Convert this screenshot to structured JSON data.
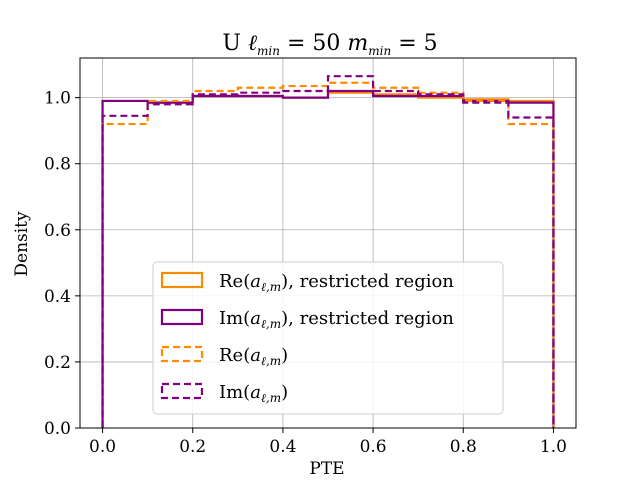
{
  "chart_data": {
    "type": "histogram-step",
    "title": {
      "prefix": "U ",
      "l_symbol": "ℓ",
      "l_sub": "min",
      "l_value": " = 50",
      "m_symbol": "m",
      "m_sub": "min",
      "m_value": " = 5"
    },
    "xlabel": "PTE",
    "ylabel": "Density",
    "xlim": [
      -0.05,
      1.05
    ],
    "ylim": [
      0.0,
      1.12
    ],
    "xticks": [
      "0.0",
      "0.2",
      "0.4",
      "0.6",
      "0.8",
      "1.0"
    ],
    "yticks": [
      "0.0",
      "0.2",
      "0.4",
      "0.6",
      "0.8",
      "1.0"
    ],
    "grid": true,
    "legend_position": "lower-center",
    "bin_edges": [
      0.0,
      0.1,
      0.2,
      0.3,
      0.4,
      0.5,
      0.6,
      0.7,
      0.8,
      0.9,
      1.0
    ],
    "series": [
      {
        "label": {
          "pre": "Re(",
          "sym": "a",
          "sub": "ℓ,m",
          "post": "), restricted region"
        },
        "color": "#ff8c00",
        "dashed": false,
        "values": [
          0.99,
          0.985,
          1.005,
          1.005,
          1.0,
          1.015,
          1.01,
          1.0,
          0.995,
          0.99
        ]
      },
      {
        "label": {
          "pre": "Im(",
          "sym": "a",
          "sub": "ℓ,m",
          "post": "), restricted region"
        },
        "color": "#800080",
        "dashed": false,
        "values": [
          0.99,
          0.985,
          1.005,
          1.005,
          1.0,
          1.02,
          1.005,
          1.005,
          0.99,
          0.985
        ]
      },
      {
        "label": {
          "pre": "Re(",
          "sym": "a",
          "sub": "ℓ,m",
          "post": ")"
        },
        "color": "#ff8c00",
        "dashed": true,
        "values": [
          0.92,
          0.99,
          1.02,
          1.03,
          1.035,
          1.045,
          1.03,
          1.015,
          0.99,
          0.92
        ]
      },
      {
        "label": {
          "pre": "Im(",
          "sym": "a",
          "sub": "ℓ,m",
          "post": ")"
        },
        "color": "#800080",
        "dashed": true,
        "values": [
          0.945,
          0.98,
          1.01,
          1.015,
          1.02,
          1.065,
          1.02,
          1.01,
          0.985,
          0.94
        ]
      }
    ]
  }
}
